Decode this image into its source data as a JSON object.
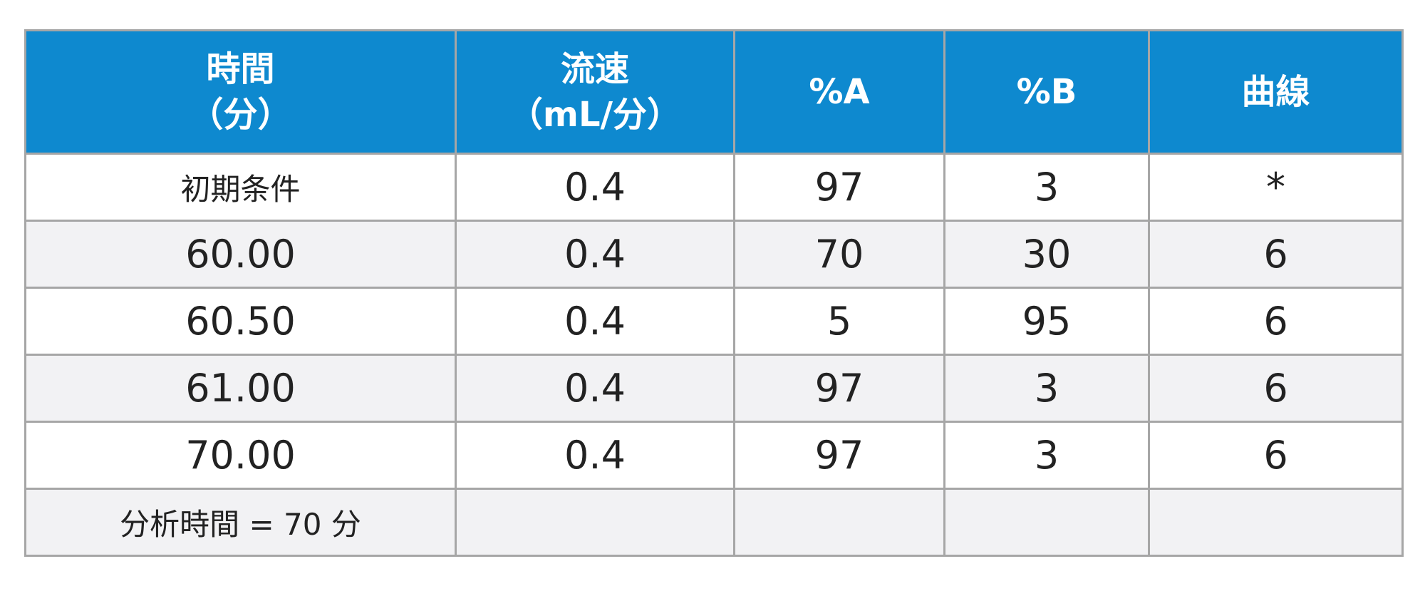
{
  "table": {
    "headers": [
      {
        "line1": "時間",
        "line2": "（分）"
      },
      {
        "line1": "流速",
        "line2": "（mL/分）"
      },
      {
        "line1": "%A",
        "line2": ""
      },
      {
        "line1": "%B",
        "line2": ""
      },
      {
        "line1": "曲線",
        "line2": ""
      }
    ],
    "rows": [
      [
        "初期条件",
        "0.4",
        "97",
        "3",
        "*"
      ],
      [
        "60.00",
        "0.4",
        "70",
        "30",
        "6"
      ],
      [
        "60.50",
        "0.4",
        "5",
        "95",
        "6"
      ],
      [
        "61.00",
        "0.4",
        "97",
        "3",
        "6"
      ],
      [
        "70.00",
        "0.4",
        "97",
        "3",
        "6"
      ],
      [
        "分析時間 = 70 分",
        "",
        "",
        "",
        ""
      ]
    ]
  },
  "colors": {
    "header_background": "#0e89cf",
    "header_text": "#ffffff",
    "border": "#a6a6a6",
    "alternate_row": "#f2f2f4"
  }
}
